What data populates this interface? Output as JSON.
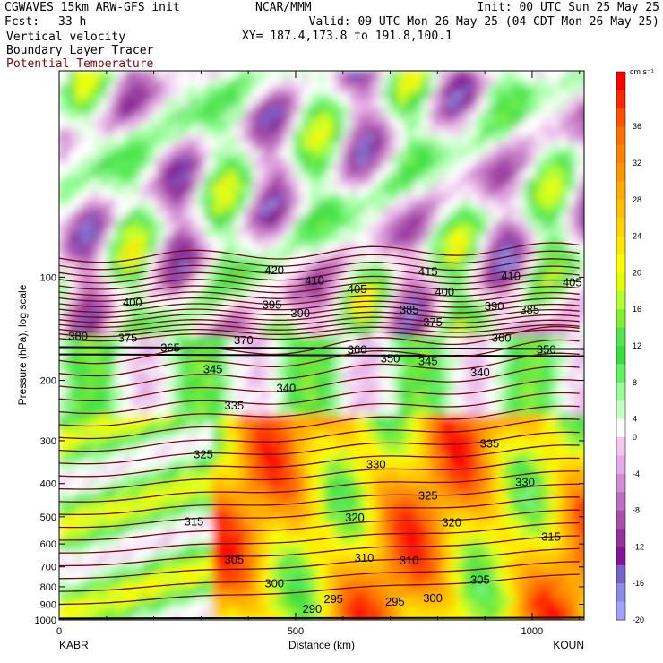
{
  "header": {
    "model": "CGWAVES 15km ARW-GFS init",
    "fcst_label": "Fcst:",
    "fcst_value": "33 h",
    "org": "NCAR/MMM",
    "init": "Init: 00 UTC Sun 25 May 25",
    "valid": "Valid: 09 UTC Mon 26 May 25 (04 CDT Mon 26 May 25)",
    "xy": "XY= 187.4,173.8 to 191.8,100.1",
    "fields": [
      "Vertical velocity",
      "Boundary Layer Tracer",
      "Potential Temperature"
    ],
    "field_colors": [
      "#000000",
      "#000000",
      "#7a0a14"
    ]
  },
  "colors": {
    "theta": "#6e0a10",
    "tracer": "#000000"
  },
  "chart_data": {
    "type": "heatmap",
    "xlabel": "Distance (km)",
    "ylabel": "Pressure (hPa), log scale",
    "xlim": [
      0,
      1110
    ],
    "ylim": [
      1000,
      25
    ],
    "x_ticks": [
      0,
      500,
      1000
    ],
    "y_ticks": [
      100,
      200,
      300,
      400,
      500,
      600,
      700,
      800,
      900,
      1000
    ],
    "x_end_labels": [
      "KABR",
      "KOUN"
    ],
    "colorbar": {
      "units": "cm s⁻¹",
      "tick_values": [
        36,
        32,
        28,
        24,
        20,
        16,
        12,
        8,
        4,
        0,
        -4,
        -8,
        -12,
        -16,
        -20
      ],
      "levels": [
        40,
        38,
        36,
        34,
        32,
        30,
        28,
        26,
        24,
        22,
        20,
        18,
        16,
        14,
        12,
        10,
        8,
        6,
        4,
        2,
        -2,
        -4,
        -6,
        -8,
        -10,
        -12,
        -14,
        -16,
        -18,
        -20,
        -22
      ],
      "colors": [
        "#ff0000",
        "#ff2800",
        "#ff5000",
        "#ff6e00",
        "#ff8200",
        "#ff9600",
        "#ffaa00",
        "#ffbe00",
        "#ffd200",
        "#ffe600",
        "#ffff00",
        "#e6ff00",
        "#b4ff32",
        "#82f032",
        "#50e650",
        "#3cdc3c",
        "#64f064",
        "#96ff96",
        "#c8ffc8",
        "#ffffff",
        "#f0c8f0",
        "#e6aae6",
        "#d28cd2",
        "#be6ebe",
        "#aa50aa",
        "#96329b",
        "#821496",
        "#7864c8",
        "#8c8ce6",
        "#a0a0ff"
      ]
    },
    "theta_labels": [
      {
        "value": "420",
        "x": 455,
        "p": 95
      },
      {
        "value": "410",
        "x": 540,
        "p": 102
      },
      {
        "value": "405",
        "x": 630,
        "p": 108
      },
      {
        "value": "415",
        "x": 780,
        "p": 96
      },
      {
        "value": "400",
        "x": 815,
        "p": 110
      },
      {
        "value": "410",
        "x": 955,
        "p": 99
      },
      {
        "value": "405",
        "x": 1085,
        "p": 103
      },
      {
        "value": "400",
        "x": 155,
        "p": 118
      },
      {
        "value": "395",
        "x": 450,
        "p": 120
      },
      {
        "value": "390",
        "x": 510,
        "p": 127
      },
      {
        "value": "385",
        "x": 740,
        "p": 124
      },
      {
        "value": "390",
        "x": 920,
        "p": 121
      },
      {
        "value": "385",
        "x": 995,
        "p": 124
      },
      {
        "value": "375",
        "x": 790,
        "p": 135
      },
      {
        "value": "380",
        "x": 40,
        "p": 148
      },
      {
        "value": "375",
        "x": 145,
        "p": 150
      },
      {
        "value": "365",
        "x": 235,
        "p": 160
      },
      {
        "value": "370",
        "x": 390,
        "p": 152
      },
      {
        "value": "360",
        "x": 630,
        "p": 162
      },
      {
        "value": "350",
        "x": 700,
        "p": 172
      },
      {
        "value": "345",
        "x": 780,
        "p": 175
      },
      {
        "value": "360",
        "x": 935,
        "p": 150
      },
      {
        "value": "350",
        "x": 1030,
        "p": 162
      },
      {
        "value": "340",
        "x": 890,
        "p": 189
      },
      {
        "value": "345",
        "x": 325,
        "p": 185
      },
      {
        "value": "340",
        "x": 480,
        "p": 210
      },
      {
        "value": "335",
        "x": 370,
        "p": 236
      },
      {
        "value": "325",
        "x": 305,
        "p": 327
      },
      {
        "value": "330",
        "x": 670,
        "p": 350
      },
      {
        "value": "335",
        "x": 910,
        "p": 305
      },
      {
        "value": "330",
        "x": 985,
        "p": 395
      },
      {
        "value": "325",
        "x": 780,
        "p": 432
      },
      {
        "value": "315",
        "x": 285,
        "p": 514
      },
      {
        "value": "320",
        "x": 625,
        "p": 500
      },
      {
        "value": "320",
        "x": 830,
        "p": 518
      },
      {
        "value": "315",
        "x": 1040,
        "p": 570
      },
      {
        "value": "305",
        "x": 370,
        "p": 665
      },
      {
        "value": "310",
        "x": 645,
        "p": 656
      },
      {
        "value": "310",
        "x": 740,
        "p": 668
      },
      {
        "value": "305",
        "x": 890,
        "p": 760
      },
      {
        "value": "300",
        "x": 455,
        "p": 780
      },
      {
        "value": "295",
        "x": 580,
        "p": 865
      },
      {
        "value": "295",
        "x": 710,
        "p": 880
      },
      {
        "value": "300",
        "x": 790,
        "p": 860
      },
      {
        "value": "290",
        "x": 535,
        "p": 925
      }
    ]
  }
}
